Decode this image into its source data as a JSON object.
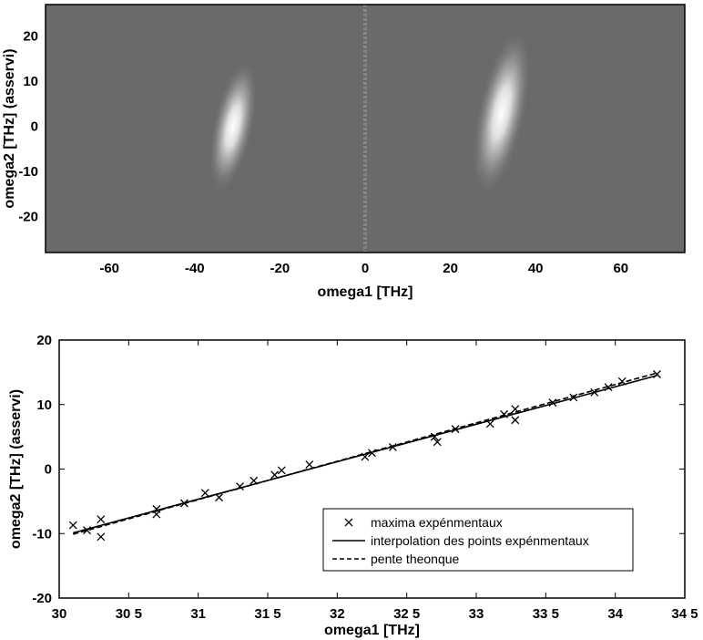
{
  "chart_data": [
    {
      "type": "heatmap",
      "xlabel": "omega1 [THz]",
      "ylabel": "omega2 [THz] (asservi)",
      "xlim": [
        -75,
        75
      ],
      "ylim": [
        -28,
        27
      ],
      "xticks": [
        -60,
        -40,
        -20,
        0,
        20,
        40,
        60
      ],
      "yticks": [
        20,
        10,
        0,
        -10,
        -20
      ],
      "colormap": "grayscale",
      "background_color": "#6a6a6a",
      "blobs": [
        {
          "center_x": -31,
          "center_y": 0,
          "sigma_x": 2.2,
          "sigma_y": 8,
          "peak": 1.0,
          "tilt_deg": -12
        },
        {
          "center_x": 32,
          "center_y": 3,
          "sigma_x": 2.6,
          "sigma_y": 10,
          "peak": 1.0,
          "tilt_deg": -12
        }
      ],
      "center_line_x": 0
    },
    {
      "type": "scatter",
      "xlabel": "omega1 [THz]",
      "ylabel": "omega2 [THz] (asservi)",
      "xlim": [
        30,
        34.5
      ],
      "ylim": [
        -20,
        20
      ],
      "xticks": [
        30,
        30.5,
        31,
        31.5,
        32,
        32.5,
        33,
        33.5,
        34,
        34.5
      ],
      "xtick_labels": [
        "30",
        "30 5",
        "31",
        "31 5",
        "32",
        "32 5",
        "33",
        "33 5",
        "34",
        "34 5"
      ],
      "yticks": [
        20,
        10,
        0,
        -10,
        -20
      ],
      "legend_position": "bottom-right",
      "series": [
        {
          "name": "maxima expénmentaux",
          "marker": "x",
          "points": [
            [
              30.1,
              -8.7
            ],
            [
              30.2,
              -9.5
            ],
            [
              30.3,
              -7.8
            ],
            [
              30.3,
              -10.5
            ],
            [
              30.7,
              -6.2
            ],
            [
              30.7,
              -7.0
            ],
            [
              30.9,
              -5.3
            ],
            [
              31.05,
              -3.7
            ],
            [
              31.15,
              -4.4
            ],
            [
              31.3,
              -2.7
            ],
            [
              31.4,
              -1.8
            ],
            [
              31.55,
              -0.9
            ],
            [
              31.6,
              -0.2
            ],
            [
              31.8,
              0.7
            ],
            [
              32.2,
              1.9
            ],
            [
              32.25,
              2.5
            ],
            [
              32.4,
              3.4
            ],
            [
              32.7,
              5.0
            ],
            [
              32.72,
              4.2
            ],
            [
              32.85,
              6.2
            ],
            [
              33.1,
              7.0
            ],
            [
              33.2,
              8.5
            ],
            [
              33.28,
              9.3
            ],
            [
              33.28,
              7.6
            ],
            [
              33.55,
              10.3
            ],
            [
              33.7,
              11.1
            ],
            [
              33.85,
              11.9
            ],
            [
              33.95,
              12.7
            ],
            [
              34.05,
              13.6
            ],
            [
              34.3,
              14.7
            ]
          ]
        },
        {
          "name": "interpolation des points expénmentaux",
          "style": "solid",
          "line": [
            [
              30.1,
              -9.9
            ],
            [
              34.3,
              14.5
            ]
          ]
        },
        {
          "name": "pente theonque",
          "style": "dashed",
          "line": [
            [
              30.1,
              -10.1
            ],
            [
              34.3,
              14.9
            ]
          ]
        }
      ]
    }
  ]
}
